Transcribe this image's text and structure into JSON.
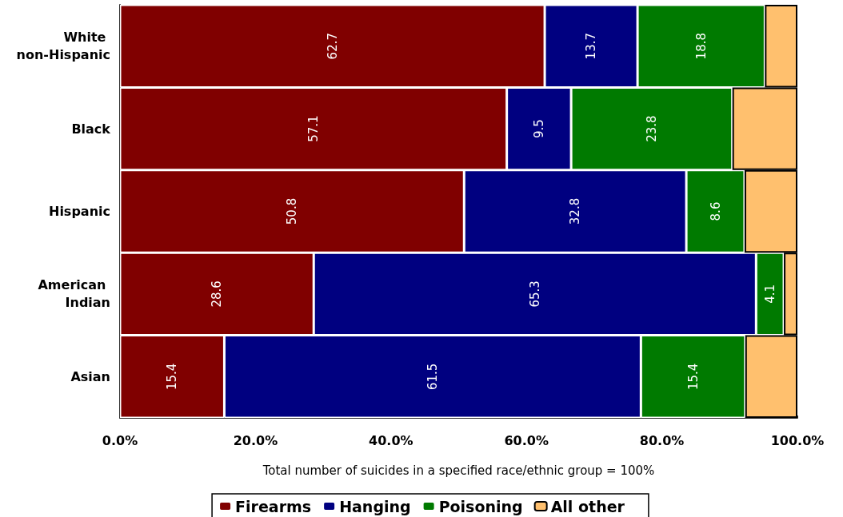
{
  "chart_data": {
    "type": "bar",
    "orientation": "horizontal",
    "stacked": true,
    "categories": [
      "White non-Hispanic",
      "Black",
      "Hispanic",
      "American Indian",
      "Asian"
    ],
    "series": [
      {
        "name": "Firearms",
        "color": "#800000",
        "values": [
          62.7,
          57.1,
          50.8,
          28.6,
          15.4
        ],
        "value_labels": [
          "62.7",
          "57.1",
          "50.8",
          "28.6",
          "15.4"
        ]
      },
      {
        "name": "Hanging",
        "color": "#000080",
        "values": [
          13.7,
          9.5,
          32.8,
          65.3,
          61.5
        ],
        "value_labels": [
          "13.7",
          "9.5",
          "32.8",
          "65.3",
          "61.5"
        ]
      },
      {
        "name": "Poisoning",
        "color": "#007a00",
        "values": [
          18.8,
          23.8,
          8.6,
          4.1,
          15.4
        ],
        "value_labels": [
          "18.8",
          "23.8",
          "8.6",
          "4.1",
          "15.4"
        ]
      },
      {
        "name": "All other",
        "color": "#ffc06e",
        "values": [
          4.8,
          9.6,
          7.8,
          2.0,
          7.7
        ]
      }
    ],
    "xlim": [
      0,
      100
    ],
    "xticks": [
      {
        "value": 0,
        "label": "0.0%"
      },
      {
        "value": 20,
        "label": "20.0%"
      },
      {
        "value": 40,
        "label": "40.0%"
      },
      {
        "value": 60,
        "label": "60.0%"
      },
      {
        "value": 80,
        "label": "80.0%"
      },
      {
        "value": 100,
        "label": "100.0%"
      }
    ],
    "xlabel": "Total number of suicides in a specified race/ethnic group = 100%",
    "grid": false,
    "legend": "bottom"
  }
}
